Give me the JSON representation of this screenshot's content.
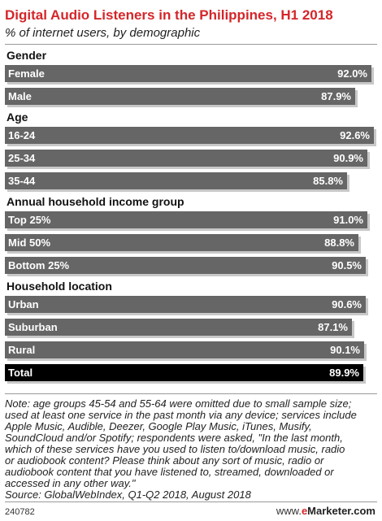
{
  "chart_data": {
    "type": "bar",
    "orientation": "horizontal",
    "title": "Digital Audio Listeners in the Philippines, H1 2018",
    "subtitle": "% of internet users, by demographic",
    "groups": [
      {
        "label": "Gender",
        "rows": [
          {
            "label": "Female",
            "value": 92.0,
            "value_label": "92.0%"
          },
          {
            "label": "Male",
            "value": 87.9,
            "value_label": "87.9%"
          }
        ]
      },
      {
        "label": "Age",
        "rows": [
          {
            "label": "16-24",
            "value": 92.6,
            "value_label": "92.6%"
          },
          {
            "label": "25-34",
            "value": 90.9,
            "value_label": "90.9%"
          },
          {
            "label": "35-44",
            "value": 85.8,
            "value_label": "85.8%"
          }
        ]
      },
      {
        "label": "Annual household income group",
        "rows": [
          {
            "label": "Top 25%",
            "value": 91.0,
            "value_label": "91.0%"
          },
          {
            "label": "Mid 50%",
            "value": 88.8,
            "value_label": "88.8%"
          },
          {
            "label": "Bottom 25%",
            "value": 90.5,
            "value_label": "90.5%"
          }
        ]
      },
      {
        "label": "Household location",
        "rows": [
          {
            "label": "Urban",
            "value": 90.6,
            "value_label": "90.6%"
          },
          {
            "label": "Suburban",
            "value": 87.1,
            "value_label": "87.1%"
          },
          {
            "label": "Rural",
            "value": 90.1,
            "value_label": "90.1%"
          }
        ]
      }
    ],
    "total": {
      "label": "Total",
      "value": 89.9,
      "value_label": "89.9%"
    },
    "grid": false,
    "legend": "none"
  },
  "note_lines": [
    "Note: age groups 45-54 and 55-64 were omitted due to small sample size;",
    "used at least one service in the past month via any device; services include",
    "Apple Music, Audible, Deezer, Google Play Music, iTunes, Musify,",
    "SoundCloud and/or Spotify; respondents were asked, \"In the last month,",
    "which of these services have you used to listen to/download music, radio",
    "or audiobook content? Please think about any sort of music, radio or",
    "audiobook content that you have listened to, streamed, downloaded or",
    "accessed in any other way.\"",
    "Source: GlobalWebIndex, Q1-Q2 2018, August 2018"
  ],
  "footer": {
    "chart_id": "240782",
    "brand_www": "www.",
    "brand_e": "e",
    "brand_rest": "Marketer.com"
  },
  "colors": {
    "title": "#d4262a",
    "bar": "#666666",
    "total_bar": "#000000",
    "bar_shadow": "#c8c8c8"
  }
}
